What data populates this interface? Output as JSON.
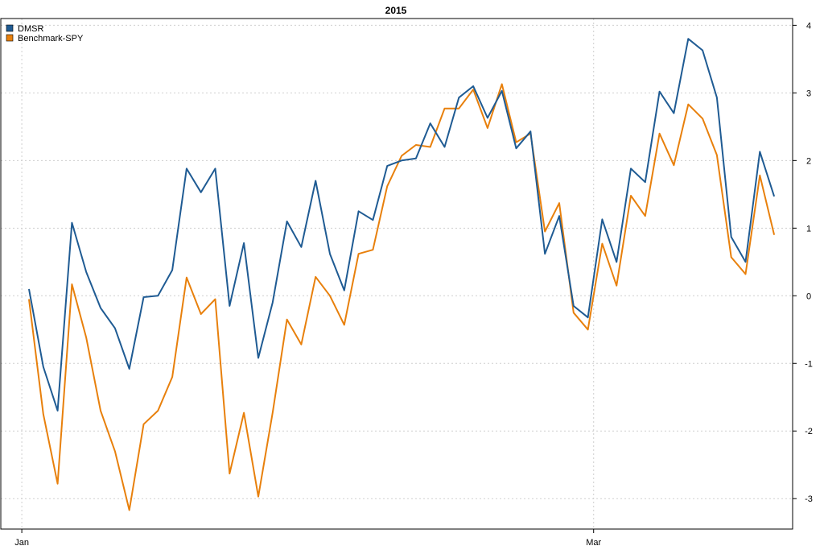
{
  "chart_data": {
    "type": "line",
    "title": "2015",
    "xlabel": "",
    "ylabel": "",
    "ylim": [
      -3.45,
      4.1
    ],
    "y_ticks": [
      -3,
      -2,
      -1,
      0,
      1,
      2,
      3,
      4
    ],
    "y_axis_side": "right",
    "grid": true,
    "legend_position": "top-left",
    "x_ticks": [
      {
        "label": "Jan",
        "index": -0.5
      },
      {
        "label": "Mar",
        "index": 39.4
      }
    ],
    "series": [
      {
        "name": "DMSR",
        "color": "#1f5b93",
        "values": [
          0.1,
          -1.05,
          -1.7,
          1.08,
          0.35,
          -0.18,
          -0.48,
          -1.08,
          -0.02,
          0.0,
          0.38,
          1.88,
          1.53,
          1.88,
          -0.15,
          0.78,
          -0.92,
          -0.1,
          1.1,
          0.72,
          1.7,
          0.62,
          0.08,
          1.25,
          1.12,
          1.92,
          2.0,
          2.03,
          2.55,
          2.2,
          2.93,
          3.1,
          2.63,
          3.03,
          2.18,
          2.43,
          0.62,
          1.18,
          -0.15,
          -0.32,
          1.13,
          0.5,
          1.88,
          1.68,
          3.02,
          2.7,
          3.8,
          3.63,
          2.93,
          0.87,
          0.5,
          2.13,
          1.47
        ]
      },
      {
        "name": "Benchmark-SPY",
        "color": "#e8800c",
        "values": [
          -0.05,
          -1.75,
          -2.78,
          0.17,
          -0.62,
          -1.7,
          -2.3,
          -3.17,
          -1.9,
          -1.7,
          -1.2,
          0.27,
          -0.27,
          -0.05,
          -2.63,
          -1.73,
          -2.97,
          -1.73,
          -0.35,
          -0.72,
          0.28,
          0.0,
          -0.43,
          0.62,
          0.68,
          1.62,
          2.07,
          2.23,
          2.2,
          2.77,
          2.77,
          3.05,
          2.48,
          3.13,
          2.27,
          2.4,
          0.95,
          1.37,
          -0.25,
          -0.5,
          0.77,
          0.15,
          1.48,
          1.18,
          2.4,
          1.93,
          2.83,
          2.62,
          2.08,
          0.57,
          0.32,
          1.78,
          0.9
        ]
      }
    ]
  }
}
